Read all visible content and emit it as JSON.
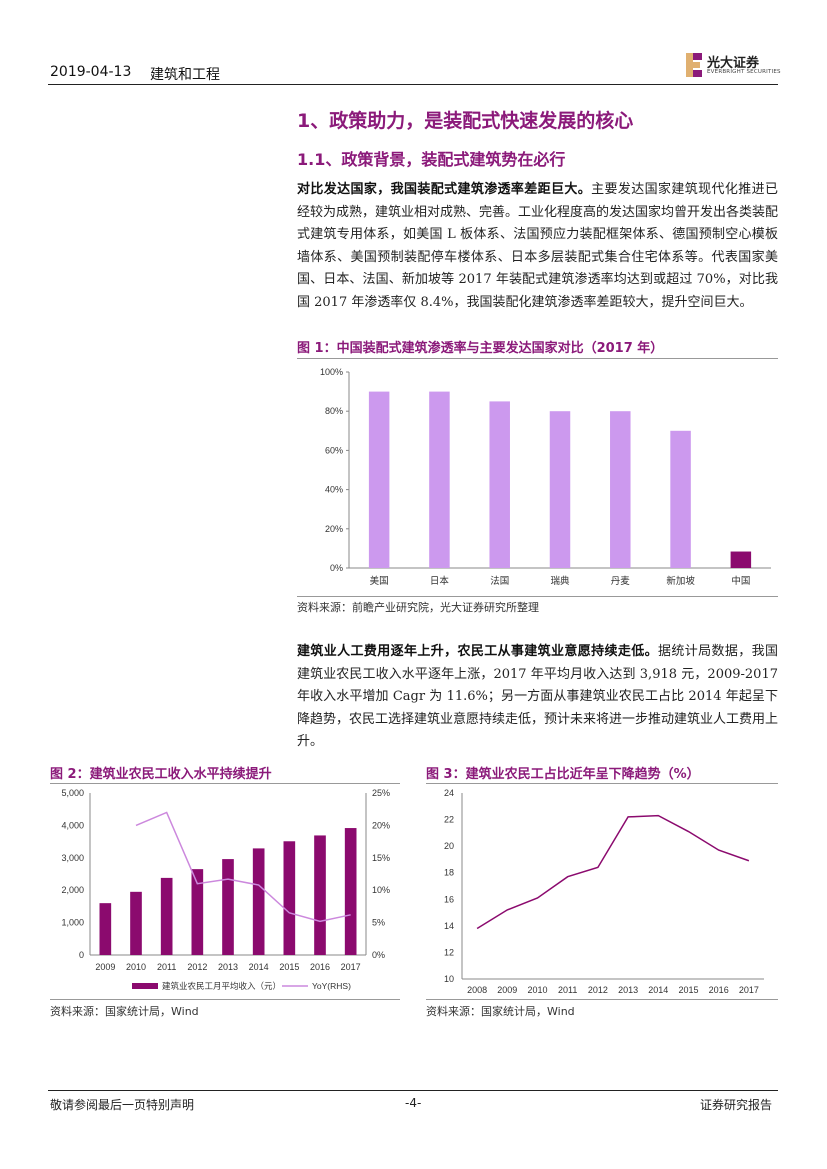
{
  "header": {
    "date": "2019-04-13",
    "sector": "建筑和工程",
    "logo_cn": "光大证券",
    "logo_en": "EVERBRIGHT SECURITIES"
  },
  "section": {
    "h1": "1、政策助力，是装配式快速发展的核心",
    "h2": "1.1、政策背景，装配式建筑势在必行"
  },
  "para1": {
    "bold": "对比发达国家，我国装配式建筑渗透率差距巨大。",
    "text": "主要发达国家建筑现代化推进已经较为成熟，建筑业相对成熟、完善。工业化程度高的发达国家均曾开发出各类装配式建筑专用体系，如美国 L 板体系、法国预应力装配框架体系、德国预制空心模板墙体系、美国预制装配停车楼体系、日本多层装配式集合住宅体系等。代表国家美国、日本、法国、新加坡等 2017 年装配式建筑渗透率均达到或超过 70%，对比我国 2017 年渗透率仅 8.4%，我国装配化建筑渗透率差距较大，提升空间巨大。"
  },
  "para2": {
    "bold": "建筑业人工费用逐年上升，农民工从事建筑业意愿持续走低。",
    "text": "据统计局数据，我国建筑业农民工收入水平逐年上涨，2017 年平均月收入达到 3,918 元，2009-2017 年收入水平增加 Cagr 为 11.6%；另一方面从事建筑业农民工占比 2014 年起呈下降趋势，农民工选择建筑业意愿持续走低，预计未来将进一步推动建筑业人工费用上升。"
  },
  "fig1": {
    "title": "图 1：中国装配式建筑渗透率与主要发达国家对比（2017 年）",
    "source": "资料来源：前瞻产业研究院，光大证券研究所整理"
  },
  "fig2": {
    "title": "图 2：建筑业农民工收入水平持续提升",
    "source": "资料来源：国家统计局，Wind"
  },
  "fig3": {
    "title": "图 3：建筑业农民工占比近年呈下降趋势（%）",
    "source": "资料来源：国家统计局，Wind"
  },
  "chart_data": [
    {
      "type": "bar",
      "categories": [
        "美国",
        "日本",
        "法国",
        "瑞典",
        "丹麦",
        "新加坡",
        "中国"
      ],
      "values": [
        90,
        90,
        85,
        80,
        80,
        70,
        8.4
      ],
      "ylim": [
        0,
        100
      ],
      "yticks": [
        "0%",
        "20%",
        "40%",
        "60%",
        "80%",
        "100%"
      ],
      "bar_color": "#cc99ee",
      "highlight_color": "#8b0a6e"
    },
    {
      "type": "bar+line",
      "categories": [
        "2009",
        "2010",
        "2011",
        "2012",
        "2013",
        "2014",
        "2015",
        "2016",
        "2017"
      ],
      "series": [
        {
          "name": "建筑业农民工月平均收入（元）",
          "type": "bar",
          "values": [
            1600,
            1950,
            2380,
            2650,
            2960,
            3290,
            3510,
            3690,
            3918
          ],
          "color": "#8b0a6e"
        },
        {
          "name": "YoY(RHS)",
          "type": "line",
          "values": [
            null,
            20,
            22,
            11,
            11.7,
            10.8,
            6.5,
            5.2,
            6.2
          ],
          "color": "#cc88dd"
        }
      ],
      "ylim": [
        0,
        5000
      ],
      "y2lim": [
        0,
        25
      ],
      "yticks": [
        "0",
        "1,000",
        "2,000",
        "3,000",
        "4,000",
        "5,000"
      ],
      "y2ticks": [
        "0%",
        "5%",
        "10%",
        "15%",
        "20%",
        "25%"
      ]
    },
    {
      "type": "line",
      "x": [
        "2008",
        "2009",
        "2010",
        "2011",
        "2012",
        "2013",
        "2014",
        "2015",
        "2016",
        "2017"
      ],
      "values": [
        13.8,
        15.2,
        16.1,
        17.7,
        18.4,
        22.2,
        22.3,
        21.1,
        19.7,
        18.9
      ],
      "ylim": [
        10,
        24
      ],
      "yticks": [
        "10",
        "12",
        "14",
        "16",
        "18",
        "20",
        "22",
        "24"
      ],
      "color": "#8b0a6e"
    }
  ],
  "footer": {
    "left": "敬请参阅最后一页特别声明",
    "page": "-4-",
    "right": "证券研究报告"
  }
}
